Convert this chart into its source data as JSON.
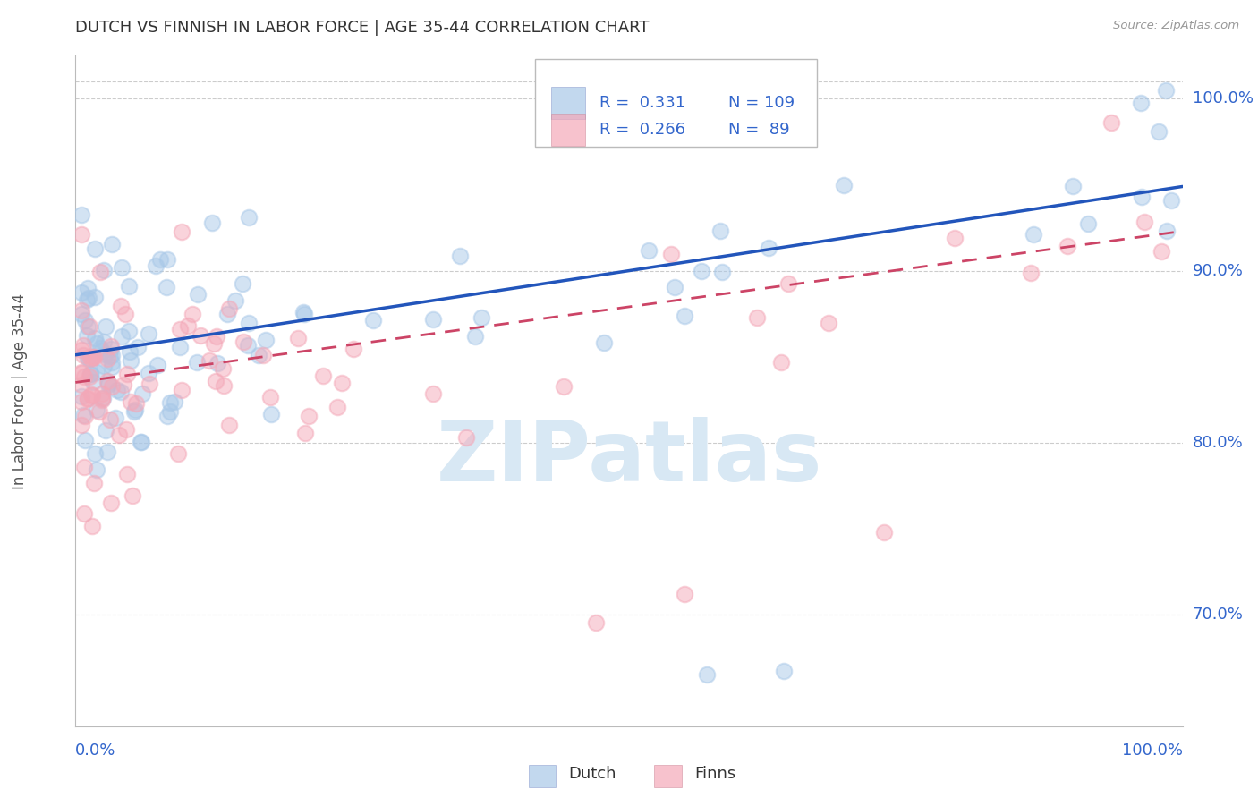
{
  "title": "DUTCH VS FINNISH IN LABOR FORCE | AGE 35-44 CORRELATION CHART",
  "source": "Source: ZipAtlas.com",
  "ylabel": "In Labor Force | Age 35-44",
  "ytick_values": [
    0.7,
    0.8,
    0.9,
    1.0
  ],
  "xlim": [
    0.0,
    1.0
  ],
  "ylim": [
    0.635,
    1.025
  ],
  "legend_blue_r": "0.331",
  "legend_blue_n": "109",
  "legend_pink_r": "0.266",
  "legend_pink_n": "89",
  "legend_label_dutch": "Dutch",
  "legend_label_finns": "Finns",
  "blue_color": "#A8C8E8",
  "pink_color": "#F4A8B8",
  "line_blue_color": "#2255BB",
  "line_pink_color": "#CC4466",
  "axis_label_color": "#3366CC",
  "title_color": "#333333",
  "watermark_color": "#D8E8F4",
  "grid_color": "#CCCCCC",
  "dutch_R": 0.331,
  "dutch_N": 109,
  "finns_R": 0.266,
  "finns_N": 89,
  "reg_blue_intercept": 0.851,
  "reg_blue_slope": 0.098,
  "reg_pink_intercept": 0.835,
  "reg_pink_slope": 0.088
}
